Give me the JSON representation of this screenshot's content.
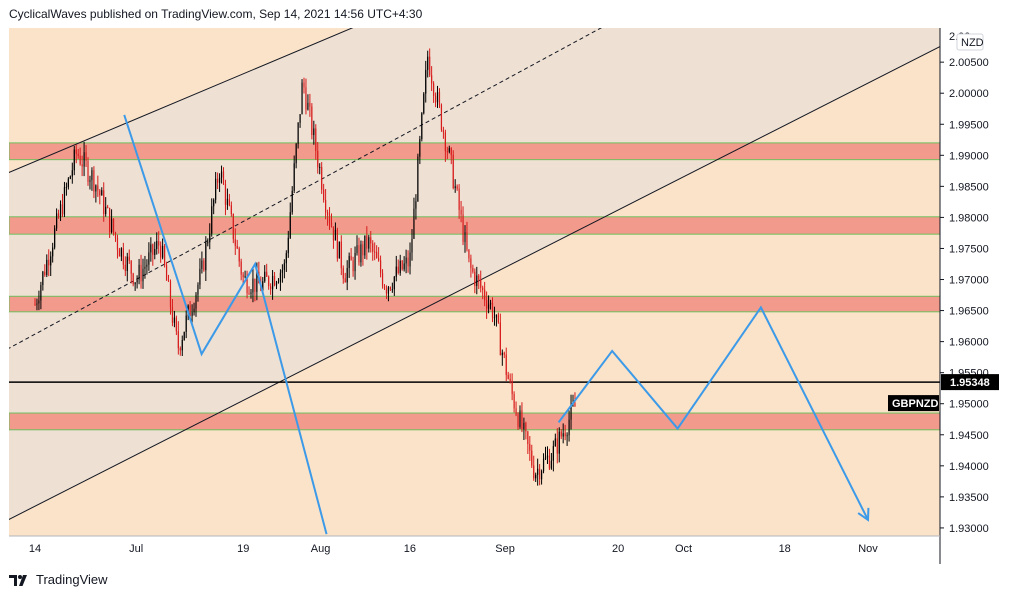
{
  "header": {
    "text": "CyclicalWaves published on TradingView.com, Sep 14, 2021 14:56 UTC+4:30"
  },
  "footer": {
    "brand": "TradingView",
    "logo_icon": "tradingview-logo-icon"
  },
  "colors": {
    "background": "#fae3c9",
    "channel_fill": "#eee0d3",
    "zone_fill": "#f29a8c",
    "zone_border": "#6fbf5e",
    "bull_candle": "#000000",
    "bear_candle": "#d81c1c",
    "projection": "#3c9ae8",
    "price_line": "#000000"
  },
  "chart_data": {
    "type": "line",
    "symbol": "GBPNZD",
    "currency_badge": "NZD",
    "last_price": "1.95348",
    "y_axis": {
      "ticks": [
        "2.00500",
        "2.00000",
        "1.99500",
        "1.99000",
        "1.98500",
        "1.98000",
        "1.97500",
        "1.97000",
        "1.96500",
        "1.96000",
        "1.95500",
        "1.95000",
        "1.94500",
        "1.94000",
        "1.93500",
        "1.93000"
      ],
      "top_partial_label": "2.00"
    },
    "x_axis": {
      "ticks": [
        "14",
        "Jul",
        "19",
        "Aug",
        "16",
        "Sep",
        "20",
        "Oct",
        "18",
        "Nov"
      ]
    },
    "ylim": [
      1.9287,
      2.0105
    ],
    "price_history": {
      "x": [
        "Jun 14",
        "Jun 17",
        "Jun 21",
        "Jun 24",
        "Jun 28",
        "Jul 1",
        "Jul 5",
        "Jul 8",
        "Jul 12",
        "Jul 15",
        "Jul 19",
        "Jul 22",
        "Jul 26",
        "Jul 29",
        "Aug 2",
        "Aug 5",
        "Aug 9",
        "Aug 12",
        "Aug 16",
        "Aug 19",
        "Aug 23",
        "Aug 26",
        "Aug 30",
        "Sep 2",
        "Sep 6",
        "Sep 9",
        "Sep 13"
      ],
      "y": [
        1.966,
        1.9765,
        1.9905,
        1.986,
        1.9755,
        1.97,
        1.976,
        1.959,
        1.971,
        1.988,
        1.97,
        1.969,
        1.972,
        2.002,
        1.982,
        1.971,
        1.976,
        1.969,
        1.973,
        2.006,
        1.988,
        1.972,
        1.965,
        1.952,
        1.939,
        1.942,
        1.95
      ]
    },
    "projection": {
      "points": [
        [
          "Jun 29",
          1.9965
        ],
        [
          "Jul 12",
          1.958
        ],
        [
          "Jul 21",
          1.9725
        ],
        [
          "Aug 2",
          1.929
        ]
      ],
      "forecast_points": [
        [
          "Sep 10",
          1.947
        ],
        [
          "Sep 19",
          1.9585
        ],
        [
          "Sep 30",
          1.946
        ],
        [
          "Oct 14",
          1.9655
        ],
        [
          "Nov 1",
          1.9313
        ]
      ]
    },
    "horizontal_line": 1.95348,
    "zones": [
      {
        "high": 1.992,
        "low": 1.9893
      },
      {
        "high": 1.9801,
        "low": 1.9773
      },
      {
        "high": 1.9673,
        "low": 1.9648
      },
      {
        "high": 1.9485,
        "low": 1.9458
      }
    ],
    "channel": {
      "lower_line": [
        [
          "Jun 14",
          1.9335
        ],
        [
          "Nov 10",
          2.006
        ]
      ],
      "upper_line": [
        [
          "Jun 14",
          1.989
        ],
        [
          "Aug 10",
          2.012
        ]
      ],
      "median_line": [
        [
          "Jun 14",
          1.9612
        ],
        [
          "Sep 20",
          2.012
        ]
      ]
    }
  }
}
